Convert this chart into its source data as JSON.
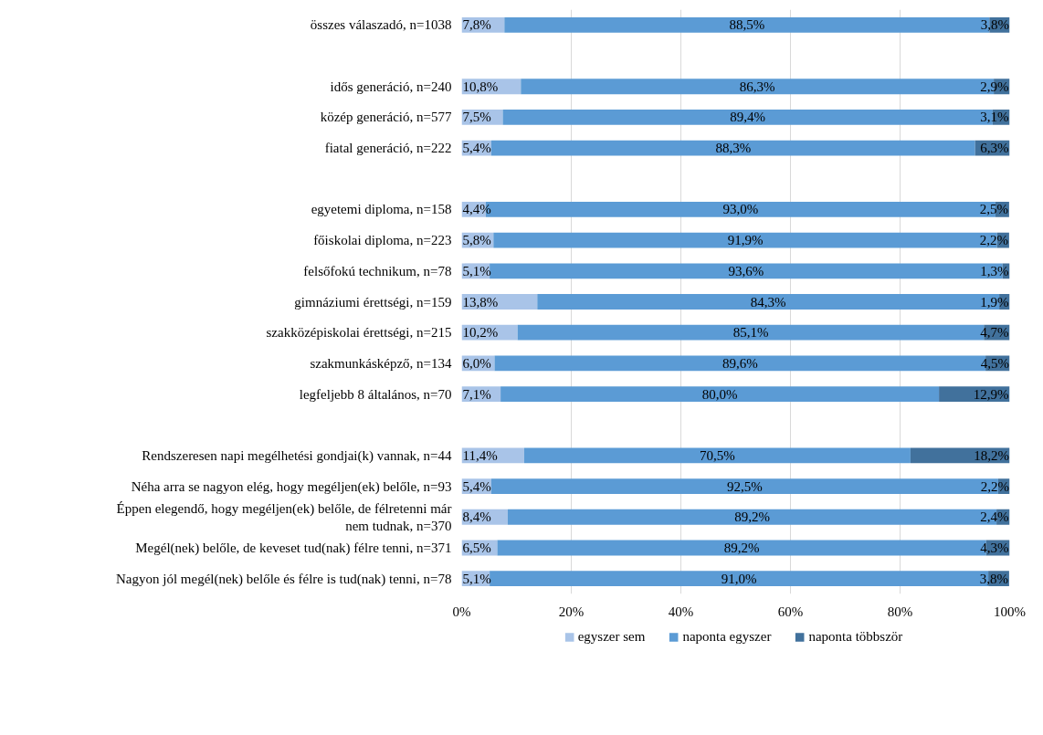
{
  "chart_data": {
    "type": "bar",
    "orientation": "horizontal",
    "stacked": true,
    "categories": [
      "összes válaszadó, n=1038",
      null,
      "idős generáció, n=240",
      "közép generáció, n=577",
      "fiatal generáció, n=222",
      null,
      "egyetemi diploma, n=158",
      "főiskolai diploma, n=223",
      "felsőfokú technikum, n=78",
      "gimnáziumi érettségi, n=159",
      "szakközépiskolai érettségi, n=215",
      "szakmunkásképző, n=134",
      "legfeljebb 8 általános, n=70",
      null,
      "Rendszeresen napi megélhetési gondjai(k) vannak, n=44",
      "Néha arra se nagyon elég, hogy megéljen(ek) belőle, n=93",
      "Éppen elegendő, hogy megéljen(ek) belőle, de félretenni már nem tudnak, n=370",
      "Megél(nek) belőle, de keveset tud(nak) félre tenni, n=371",
      "Nagyon jól megél(nek) belőle és félre is tud(nak) tenni, n=78"
    ],
    "series": [
      {
        "name": "egyszer sem",
        "color": "#a9c4e8",
        "values": [
          7.8,
          null,
          10.8,
          7.5,
          5.4,
          null,
          4.4,
          5.8,
          5.1,
          13.8,
          10.2,
          6.0,
          7.1,
          null,
          11.4,
          5.4,
          8.4,
          6.5,
          5.1
        ],
        "value_labels": [
          "7,8%",
          null,
          "10,8%",
          "7,5%",
          "5,4%",
          null,
          "4,4%",
          "5,8%",
          "5,1%",
          "13,8%",
          "10,2%",
          "6,0%",
          "7,1%",
          null,
          "11,4%",
          "5,4%",
          "8,4%",
          "6,5%",
          "5,1%"
        ]
      },
      {
        "name": "naponta egyszer",
        "color": "#5b9bd5",
        "values": [
          88.5,
          null,
          86.3,
          89.4,
          88.3,
          null,
          93.0,
          91.9,
          93.6,
          84.3,
          85.1,
          89.6,
          80.0,
          null,
          70.5,
          92.5,
          89.2,
          89.2,
          91.0
        ],
        "value_labels": [
          "88,5%",
          null,
          "86,3%",
          "89,4%",
          "88,3%",
          null,
          "93,0%",
          "91,9%",
          "93,6%",
          "84,3%",
          "85,1%",
          "89,6%",
          "80,0%",
          null,
          "70,5%",
          "92,5%",
          "89,2%",
          "89,2%",
          "91,0%"
        ]
      },
      {
        "name": "naponta többször",
        "color": "#41719c",
        "values": [
          3.8,
          null,
          2.9,
          3.1,
          6.3,
          null,
          2.5,
          2.2,
          1.3,
          1.9,
          4.7,
          4.5,
          12.9,
          null,
          18.2,
          2.2,
          2.4,
          4.3,
          3.8
        ],
        "value_labels": [
          "3,8%",
          null,
          "2,9%",
          "3,1%",
          "6,3%",
          null,
          "2,5%",
          "2,2%",
          "1,3%",
          "1,9%",
          "4,7%",
          "4,5%",
          "12,9%",
          null,
          "18,2%",
          "2,2%",
          "2,4%",
          "4,3%",
          "3,8%"
        ]
      }
    ],
    "xlim": [
      0,
      100
    ],
    "xticks": [
      {
        "value": 0,
        "label": "0%"
      },
      {
        "value": 20,
        "label": "20%"
      },
      {
        "value": 40,
        "label": "40%"
      },
      {
        "value": 60,
        "label": "60%"
      },
      {
        "value": 80,
        "label": "80%"
      },
      {
        "value": 100,
        "label": "100%"
      }
    ],
    "grid": "x",
    "legend": "bottom"
  }
}
